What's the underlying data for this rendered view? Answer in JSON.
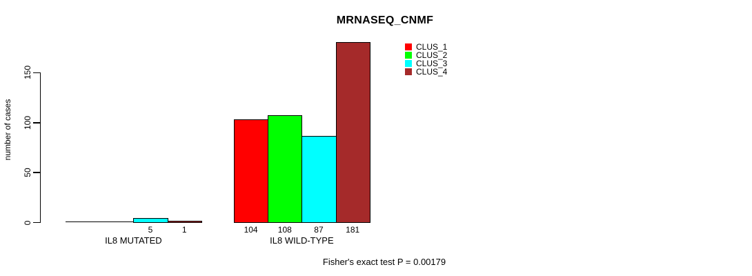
{
  "chart_data": {
    "type": "bar",
    "title": "MRNASEQ_CNMF",
    "ylabel": "number of cases",
    "xlabel": "",
    "yticks": [
      0,
      50,
      100,
      150
    ],
    "axis_range": [
      0,
      150
    ],
    "grid": false,
    "categories": [
      "IL8 MUTATED",
      "IL8 WILD-TYPE"
    ],
    "series": [
      {
        "name": "CLUS_1",
        "color": "#ff0000",
        "values": [
          0,
          104
        ]
      },
      {
        "name": "CLUS_2",
        "color": "#00ff00",
        "values": [
          0,
          108
        ]
      },
      {
        "name": "CLUS_3",
        "color": "#00ffff",
        "values": [
          5,
          87
        ]
      },
      {
        "name": "CLUS_4",
        "color": "#a52a2a",
        "values": [
          1,
          181
        ]
      }
    ],
    "value_labels_shown": [
      "5",
      "1",
      "104",
      "108",
      "87",
      "181"
    ],
    "legend": {
      "position": "top-right-inside",
      "entries": [
        "CLUS_1",
        "CLUS_2",
        "CLUS_3",
        "CLUS_4"
      ]
    },
    "footnote": "Fisher's exact test P = 0.00179"
  }
}
